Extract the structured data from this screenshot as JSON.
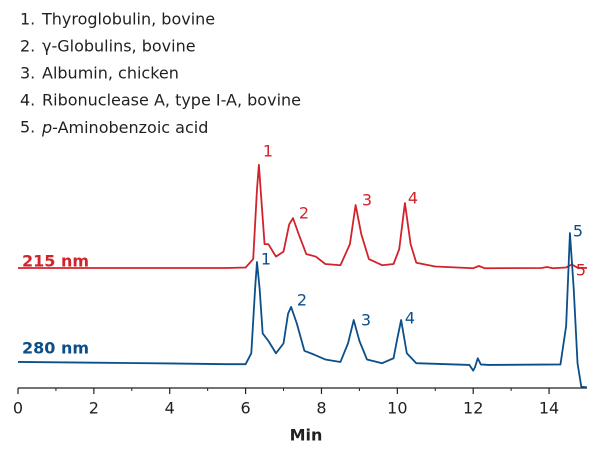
{
  "chart_data": {
    "type": "line",
    "legend_items": [
      {
        "number": "1.",
        "text": "Thyroglobulin, bovine"
      },
      {
        "number": "2.",
        "text": "γ-Globulins, bovine"
      },
      {
        "number": "3.",
        "text": "Albumin, chicken"
      },
      {
        "number": "4.",
        "text": "Ribonuclease A, type I-A, bovine"
      },
      {
        "number": "5.",
        "italic": "p",
        "text": "-Aminobenzoic acid"
      }
    ],
    "x_label": "Min",
    "xlim": [
      0,
      15
    ],
    "xticks": [
      0,
      2,
      4,
      6,
      8,
      10,
      12,
      14
    ],
    "ylim": [
      0,
      100
    ],
    "series": [
      {
        "name": "215 nm",
        "color": "#d2232a",
        "peak_labels": [
          "1",
          "2",
          "3",
          "4",
          "5"
        ],
        "x": [
          0,
          2,
          4,
          5.5,
          6.0,
          6.2,
          6.3,
          6.35,
          6.42,
          6.5,
          6.6,
          6.8,
          7.0,
          7.15,
          7.25,
          7.4,
          7.6,
          7.85,
          8.1,
          8.5,
          8.75,
          8.9,
          9.05,
          9.25,
          9.6,
          9.9,
          10.05,
          10.2,
          10.35,
          10.5,
          11,
          12.0,
          12.15,
          12.3,
          13.8,
          13.95,
          14.1,
          14.45,
          14.6,
          14.75,
          15
        ],
        "values": [
          48.4,
          48.4,
          48.4,
          48.4,
          48.6,
          52,
          80,
          90,
          75,
          58,
          58,
          53,
          55,
          66,
          68.5,
          62,
          54,
          53,
          50,
          49.5,
          58,
          73.8,
          62,
          52,
          49.5,
          50,
          56,
          74.6,
          58,
          50.5,
          49,
          48.3,
          49.2,
          48.3,
          48.4,
          48.8,
          48.3,
          48.6,
          49.8,
          48.5,
          48.4
        ]
      },
      {
        "name": "280 nm",
        "color": "#0b4f8a",
        "peak_labels": [
          "1",
          "2",
          "3",
          "4",
          "5"
        ],
        "x": [
          0,
          2,
          4,
          5.5,
          6.0,
          6.15,
          6.25,
          6.3,
          6.37,
          6.45,
          6.6,
          6.8,
          7.0,
          7.12,
          7.2,
          7.35,
          7.55,
          7.8,
          8.1,
          8.5,
          8.7,
          8.85,
          9.0,
          9.2,
          9.6,
          9.9,
          10.0,
          10.1,
          10.25,
          10.5,
          11.9,
          12.0,
          12.05,
          12.12,
          12.2,
          12.4,
          14.3,
          14.45,
          14.55,
          14.65,
          14.75,
          14.85,
          15
        ],
        "values": [
          10.5,
          10.2,
          9.9,
          9.6,
          9.6,
          14,
          40,
          50.8,
          40,
          22,
          19,
          14,
          18,
          30,
          32.7,
          26,
          15,
          13.5,
          11.5,
          10.5,
          18,
          27.4,
          19,
          11.5,
          10,
          12,
          20,
          27.4,
          14,
          10,
          9.3,
          7,
          8.5,
          12,
          9.5,
          9.3,
          9.5,
          25,
          62.5,
          40,
          10,
          0.5,
          0.3
        ]
      }
    ]
  }
}
